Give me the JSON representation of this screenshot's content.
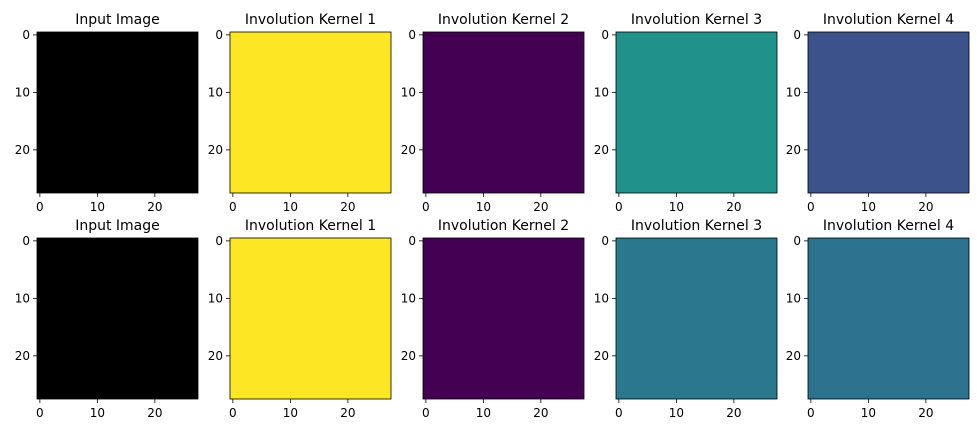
{
  "chart_data": [
    {
      "type": "image",
      "title": "Input Image",
      "xlim": [
        -0.5,
        27.5
      ],
      "ylim": [
        27.5,
        -0.5
      ],
      "xticks": [
        0,
        10,
        20
      ],
      "yticks": [
        0,
        10,
        20
      ],
      "background": "#000000",
      "foreground": "#ffffff"
    },
    {
      "type": "image",
      "title": "Involution Kernel 1",
      "xlim": [
        -0.5,
        27.5
      ],
      "ylim": [
        27.5,
        -0.5
      ],
      "xticks": [
        0,
        10,
        20
      ],
      "yticks": [
        0,
        10,
        20
      ],
      "background": "#fde725",
      "foreground": "#440154"
    },
    {
      "type": "image",
      "title": "Involution Kernel 2",
      "xlim": [
        -0.5,
        27.5
      ],
      "ylim": [
        27.5,
        -0.5
      ],
      "xticks": [
        0,
        10,
        20
      ],
      "yticks": [
        0,
        10,
        20
      ],
      "background": "#440154",
      "foreground": "#35b779"
    },
    {
      "type": "image",
      "title": "Involution Kernel 3",
      "xlim": [
        -0.5,
        27.5
      ],
      "ylim": [
        27.5,
        -0.5
      ],
      "xticks": [
        0,
        10,
        20
      ],
      "yticks": [
        0,
        10,
        20
      ],
      "background": "#21918c",
      "foreground": "#fde725"
    },
    {
      "type": "image",
      "title": "Involution Kernel 4",
      "xlim": [
        -0.5,
        27.5
      ],
      "ylim": [
        27.5,
        -0.5
      ],
      "xticks": [
        0,
        10,
        20
      ],
      "yticks": [
        0,
        10,
        20
      ],
      "background": "#3b528b",
      "foreground": "#440154"
    },
    {
      "type": "image",
      "title": "Input Image",
      "xlim": [
        -0.5,
        27.5
      ],
      "ylim": [
        27.5,
        -0.5
      ],
      "xticks": [
        0,
        10,
        20
      ],
      "yticks": [
        0,
        10,
        20
      ],
      "background": "#000000",
      "foreground": "#ffffff"
    },
    {
      "type": "image",
      "title": "Involution Kernel 1",
      "xlim": [
        -0.5,
        27.5
      ],
      "ylim": [
        27.5,
        -0.5
      ],
      "xticks": [
        0,
        10,
        20
      ],
      "yticks": [
        0,
        10,
        20
      ],
      "background": "#fde725",
      "foreground": "#440154"
    },
    {
      "type": "image",
      "title": "Involution Kernel 2",
      "xlim": [
        -0.5,
        27.5
      ],
      "ylim": [
        27.5,
        -0.5
      ],
      "xticks": [
        0,
        10,
        20
      ],
      "yticks": [
        0,
        10,
        20
      ],
      "background": "#440154",
      "foreground": "#35b779"
    },
    {
      "type": "image",
      "title": "Involution Kernel 3",
      "xlim": [
        -0.5,
        27.5
      ],
      "ylim": [
        27.5,
        -0.5
      ],
      "xticks": [
        0,
        10,
        20
      ],
      "yticks": [
        0,
        10,
        20
      ],
      "background": "#2a788e",
      "foreground": "#fde725"
    },
    {
      "type": "image",
      "title": "Involution Kernel 4",
      "xlim": [
        -0.5,
        27.5
      ],
      "ylim": [
        27.5,
        -0.5
      ],
      "xticks": [
        0,
        10,
        20
      ],
      "yticks": [
        0,
        10,
        20
      ],
      "background": "#2c728e",
      "foreground": "#440154"
    }
  ]
}
